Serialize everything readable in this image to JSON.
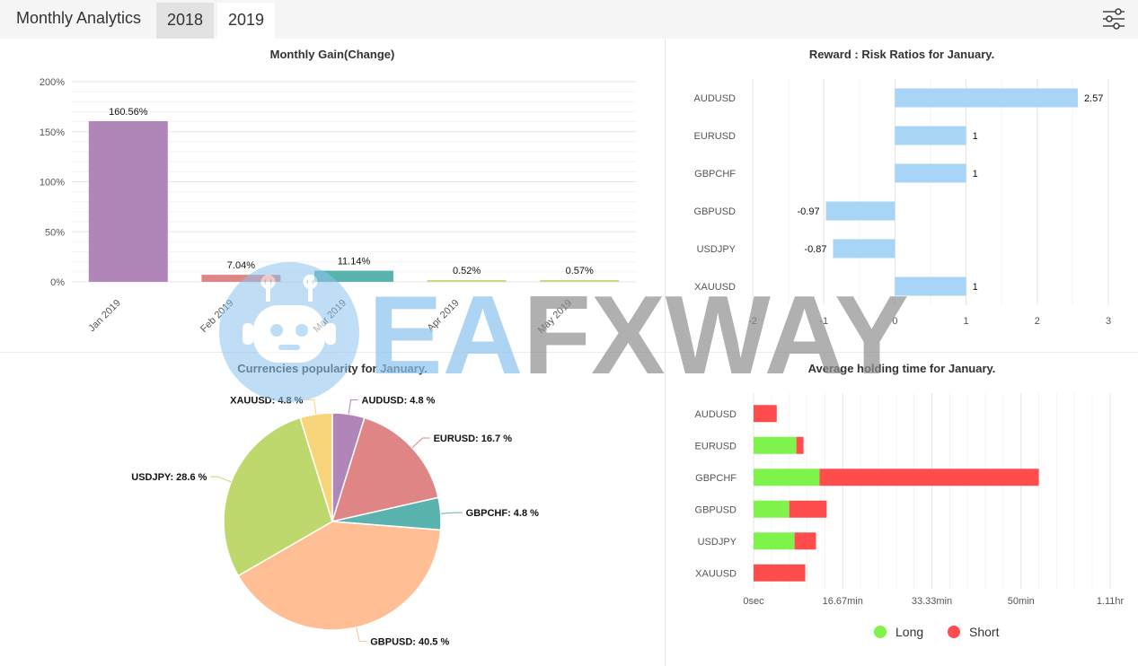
{
  "header": {
    "title": "Monthly Analytics",
    "tabs": [
      {
        "label": "2018",
        "active": false
      },
      {
        "label": "2019",
        "active": true
      }
    ],
    "filter_icon": "sliders-icon"
  },
  "colors": {
    "long": "#7ff34c",
    "short": "#ff4d4d",
    "risk_bar": "#a8d4f5"
  },
  "legend": {
    "long": "Long",
    "short": "Short"
  },
  "watermark": {
    "brand": "EAFXWAY",
    "icon": "robot-icon"
  },
  "chart_data": [
    {
      "type": "bar",
      "title": "Monthly Gain(Change)",
      "categories": [
        "Jan 2019",
        "Feb 2019",
        "Mar 2019",
        "Apr 2019",
        "May 2019"
      ],
      "values": [
        160.56,
        7.04,
        11.14,
        0.52,
        0.57
      ],
      "data_labels": [
        "160.56%",
        "7.04%",
        "11.14%",
        "0.52%",
        "0.57%"
      ],
      "colors": [
        "#b085b8",
        "#e08585",
        "#5bb3b0",
        "#c5dc86",
        "#c5dc86"
      ],
      "yticks": [
        "0%",
        "50%",
        "100%",
        "150%",
        "200%"
      ],
      "ylim": [
        0,
        200
      ],
      "grid": true
    },
    {
      "type": "bar",
      "orientation": "horizontal",
      "title": "Reward : Risk Ratios for January.",
      "categories": [
        "AUDUSD",
        "EURUSD",
        "GBPCHF",
        "GBPUSD",
        "USDJPY",
        "XAUUSD"
      ],
      "values": [
        2.57,
        1,
        1,
        -0.97,
        -0.87,
        1
      ],
      "data_labels": [
        "2.57",
        "1",
        "1",
        "-0.97",
        "-0.87",
        "1"
      ],
      "xticks": [
        "-2",
        "-1",
        "0",
        "1",
        "2",
        "3"
      ],
      "xlim": [
        -2,
        3
      ],
      "grid": true
    },
    {
      "type": "pie",
      "title": "Currencies popularity for January.",
      "slices": [
        {
          "label": "AUDUSD",
          "value": 4.8,
          "text": "AUDUSD: 4.8 %",
          "color": "#b085b8"
        },
        {
          "label": "EURUSD",
          "value": 16.7,
          "text": "EURUSD: 16.7 %",
          "color": "#e08585"
        },
        {
          "label": "GBPCHF",
          "value": 4.8,
          "text": "GBPCHF: 4.8 %",
          "color": "#5bb3b0"
        },
        {
          "label": "GBPUSD",
          "value": 40.5,
          "text": "GBPUSD: 40.5 %",
          "color": "#ffbe94"
        },
        {
          "label": "USDJPY",
          "value": 28.6,
          "text": "USDJPY: 28.6 %",
          "color": "#bfd86e"
        },
        {
          "label": "XAUUSD",
          "value": 4.8,
          "text": "XAUUSD: 4.8 %",
          "color": "#f8d57a"
        }
      ]
    },
    {
      "type": "bar",
      "orientation": "horizontal",
      "stacked": true,
      "title": "Average holding time for January.",
      "categories": [
        "AUDUSD",
        "EURUSD",
        "GBPCHF",
        "GBPUSD",
        "USDJPY",
        "XAUUSD"
      ],
      "x_unit": "minutes",
      "series": [
        {
          "name": "Long",
          "values": [
            0,
            12,
            18.5,
            10,
            11.5,
            0
          ]
        },
        {
          "name": "Short",
          "values": [
            6.5,
            2,
            61.5,
            10.5,
            6,
            14.5
          ]
        }
      ],
      "xticks": [
        "0sec",
        "16.67min",
        "33.33min",
        "50min",
        "1.11hr"
      ],
      "xlim": [
        0,
        100
      ],
      "grid": true
    }
  ]
}
